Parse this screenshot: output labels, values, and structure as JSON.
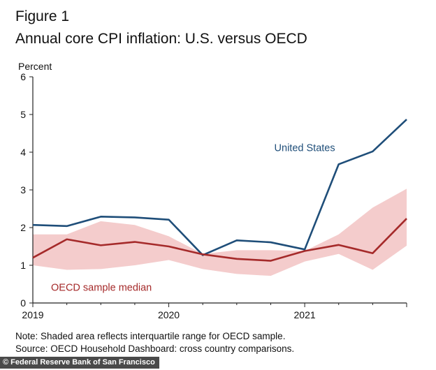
{
  "figure_label": "Figure 1",
  "title": "Annual core CPI inflation: U.S. versus OECD",
  "notes": [
    "Note: Shaded area reflects interquartile range for OECD sample.",
    "Source: OECD Household Dashboard: cross country comparisons."
  ],
  "credit": "© Federal Reserve Bank of San Francisco",
  "colors": {
    "us_line": "#1f4e79",
    "oecd_line": "#a52a2a",
    "band": "#f4cccc",
    "axis": "#222222"
  },
  "chart_data": {
    "type": "line",
    "ylabel": "Percent",
    "ylim": [
      0,
      6
    ],
    "yticks": [
      "0",
      "1",
      "2",
      "3",
      "4",
      "5",
      "6"
    ],
    "xlim": [
      2019.0,
      2021.75
    ],
    "xticks": [
      {
        "value": 2019.0,
        "label": "2019"
      },
      {
        "value": 2020.0,
        "label": "2020"
      },
      {
        "value": 2021.0,
        "label": "2021"
      }
    ],
    "x": [
      2019.0,
      2019.25,
      2019.5,
      2019.75,
      2020.0,
      2020.25,
      2020.5,
      2020.75,
      2021.0,
      2021.25,
      2021.5,
      2021.75
    ],
    "series": [
      {
        "name": "United States",
        "color": "#1f4e79",
        "values": [
          2.07,
          2.04,
          2.29,
          2.27,
          2.21,
          1.27,
          1.66,
          1.61,
          1.42,
          3.68,
          4.02,
          4.87
        ]
      },
      {
        "name": "OECD sample median",
        "color": "#a52a2a",
        "values": [
          1.2,
          1.69,
          1.53,
          1.62,
          1.5,
          1.29,
          1.17,
          1.12,
          1.38,
          1.54,
          1.32,
          2.24
        ]
      }
    ],
    "band": {
      "label": "Interquartile range",
      "lower": [
        1.0,
        0.88,
        0.9,
        1.0,
        1.14,
        0.9,
        0.77,
        0.72,
        1.1,
        1.3,
        0.88,
        1.52
      ],
      "upper": [
        1.82,
        1.82,
        2.17,
        2.07,
        1.77,
        1.3,
        1.4,
        1.4,
        1.38,
        1.82,
        2.53,
        3.03
      ]
    },
    "grid": false
  }
}
